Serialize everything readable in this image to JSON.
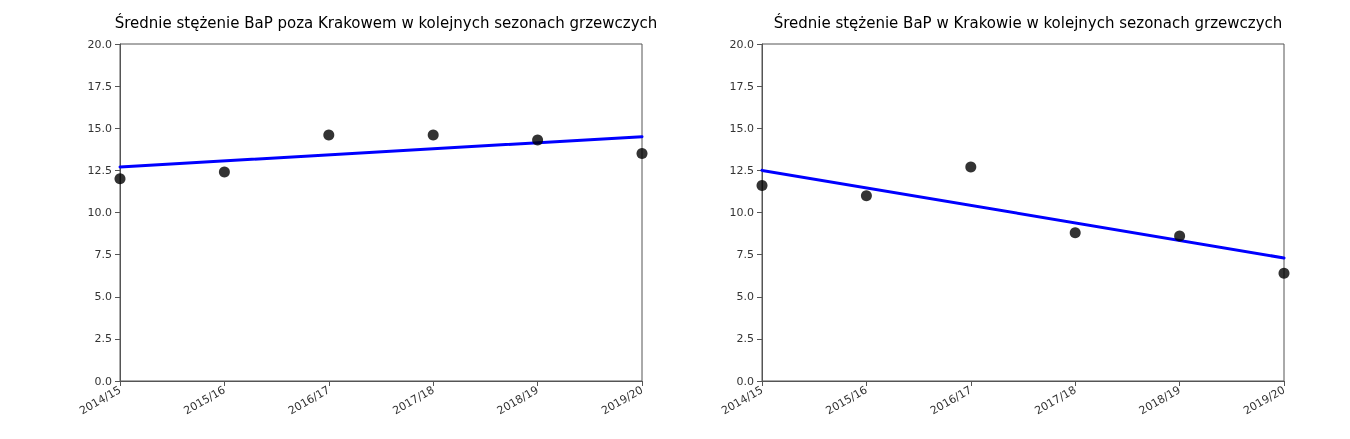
{
  "chart_data": [
    {
      "type": "scatter",
      "title": "Średnie stężenie BaP poza Krakowem w kolejnych sezonach grzewczych",
      "categories": [
        "2014/15",
        "2015/16",
        "2016/17",
        "2017/18",
        "2018/19",
        "2019/20"
      ],
      "ylim": [
        0,
        20
      ],
      "yticks": [
        {
          "value": 0,
          "label": "0.0"
        },
        {
          "value": 2.5,
          "label": "2.5"
        },
        {
          "value": 5,
          "label": "5.0"
        },
        {
          "value": 7.5,
          "label": "7.5"
        },
        {
          "value": 10,
          "label": "10.0"
        },
        {
          "value": 12.5,
          "label": "12.5"
        },
        {
          "value": 15,
          "label": "15.0"
        },
        {
          "value": 17.5,
          "label": "17.5"
        },
        {
          "value": 20,
          "label": "20.0"
        }
      ],
      "grid": false,
      "series": [
        {
          "color": "#000000",
          "marker": "circle",
          "values": [
            12.0,
            12.4,
            14.6,
            14.6,
            14.3,
            13.5
          ]
        },
        {
          "type": "line",
          "color": "#0000ff",
          "marker": "none",
          "x": [
            "2014/15",
            "2019/20"
          ],
          "values": [
            12.7,
            14.5
          ]
        }
      ]
    },
    {
      "type": "scatter",
      "title": "Średnie stężenie BaP w Krakowie w kolejnych sezonach grzewczych",
      "categories": [
        "2014/15",
        "2015/16",
        "2016/17",
        "2017/18",
        "2018/19",
        "2019/20"
      ],
      "ylim": [
        0,
        20
      ],
      "yticks": [
        {
          "value": 0,
          "label": "0.0"
        },
        {
          "value": 2.5,
          "label": "2.5"
        },
        {
          "value": 5,
          "label": "5.0"
        },
        {
          "value": 7.5,
          "label": "7.5"
        },
        {
          "value": 10,
          "label": "10.0"
        },
        {
          "value": 12.5,
          "label": "12.5"
        },
        {
          "value": 15,
          "label": "15.0"
        },
        {
          "value": 17.5,
          "label": "17.5"
        },
        {
          "value": 20,
          "label": "20.0"
        }
      ],
      "grid": false,
      "series": [
        {
          "color": "#000000",
          "marker": "circle",
          "values": [
            11.6,
            11.0,
            12.7,
            8.8,
            8.6,
            6.4
          ]
        },
        {
          "type": "line",
          "color": "#0000ff",
          "marker": "none",
          "x": [
            "2014/15",
            "2019/20"
          ],
          "values": [
            12.5,
            7.3
          ]
        }
      ]
    }
  ]
}
